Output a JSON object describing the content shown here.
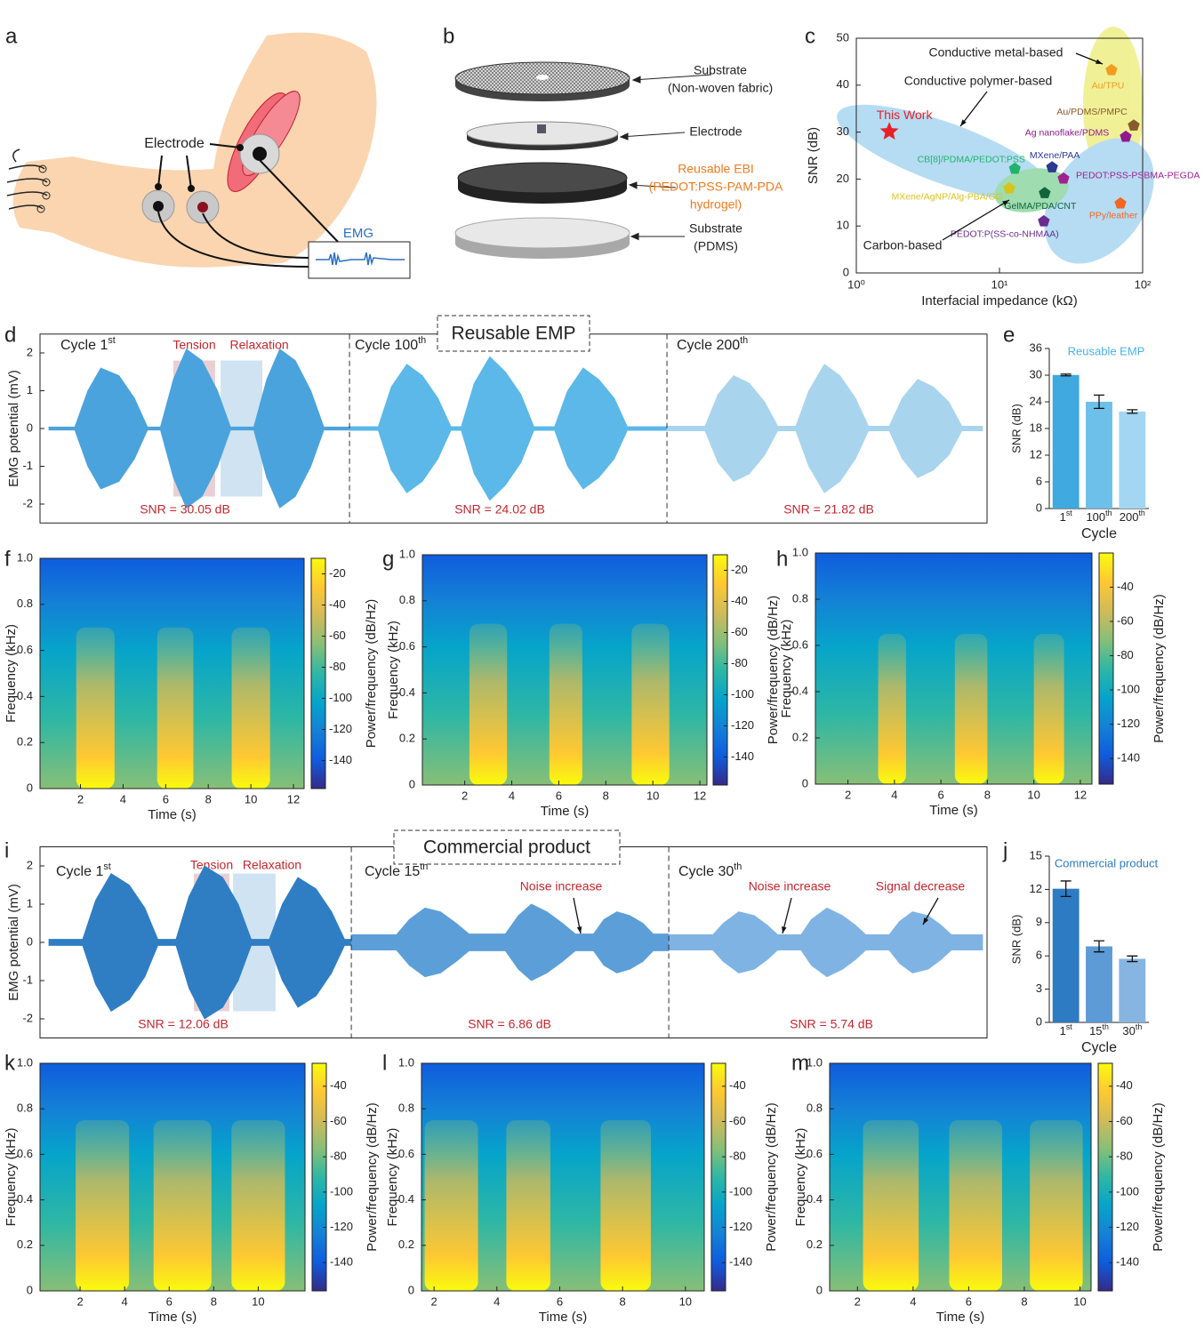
{
  "illustrations": {
    "a": {
      "label": "a",
      "electrode": "Electrode",
      "signal": "EMG"
    },
    "b": {
      "label": "b",
      "layers": [
        [
          "Substrate",
          "(Non-woven fabric)"
        ],
        [
          "Electrode"
        ],
        [
          "Reusable EBI",
          "(PEDOT:PSS-PAM-PDA",
          "hydrogel)"
        ],
        [
          "Substrate",
          "(PDMS)"
        ]
      ]
    }
  },
  "chart_data": [
    {
      "type": "scatter",
      "label": "c",
      "xlabel": "Interfacial impedance (kΩ)",
      "ylabel": "SNR (dB)",
      "xlog": true,
      "xlim": [
        1,
        100
      ],
      "xticks": [
        {
          "value": 1,
          "label": "10⁰"
        },
        {
          "value": 10,
          "label": "10¹"
        },
        {
          "value": 100,
          "label": "10²"
        }
      ],
      "ylim": [
        0,
        50
      ],
      "yticks": [
        0,
        10,
        20,
        30,
        40,
        50
      ],
      "series": [
        {
          "name": "This Work",
          "color": "#e8202a",
          "marker": "star",
          "x": [
            1.7
          ],
          "values": [
            30.1
          ]
        },
        {
          "name": "Au/TPU",
          "color": "#f39c1f",
          "marker": "pentagon",
          "x": [
            60.6
          ],
          "values": [
            43.2
          ]
        },
        {
          "name": "Au/PDMS/PMPC",
          "color": "#8b5a2b",
          "marker": "pentagon",
          "x": [
            86.7
          ],
          "values": [
            31.4
          ]
        },
        {
          "name": "Ag nanoflake/PDMS",
          "color": "#8e1a8e",
          "marker": "pentagon",
          "x": [
            76.2
          ],
          "values": [
            29
          ]
        },
        {
          "name": "CB[8]/PDMA/PEDOT:PSS",
          "color": "#21b36b",
          "marker": "pentagon",
          "x": [
            12.8
          ],
          "values": [
            22.2
          ]
        },
        {
          "name": "MXene/PAA",
          "color": "#2b3990",
          "marker": "pentagon",
          "x": [
            23.3
          ],
          "values": [
            22.5
          ]
        },
        {
          "name": "PEDOT:PSS-PSBMA-PEGDA",
          "color": "#a0208f",
          "marker": "pentagon",
          "x": [
            28
          ],
          "values": [
            20.1
          ]
        },
        {
          "name": "MXene/AgNP/Alg-PBA/GG",
          "color": "#d9c41a",
          "marker": "pentagon",
          "x": [
            11.7
          ],
          "values": [
            18
          ]
        },
        {
          "name": "GelMA/PDA/CNT",
          "color": "#12653a",
          "marker": "pentagon",
          "x": [
            20.7
          ],
          "values": [
            17
          ]
        },
        {
          "name": "PEDOT:P(SS-co-NHMAA)",
          "color": "#6a2c91",
          "marker": "pentagon",
          "x": [
            20.4
          ],
          "values": [
            11
          ]
        },
        {
          "name": "PPy/leather",
          "color": "#f26522",
          "marker": "pentagon",
          "x": [
            70
          ],
          "values": [
            14.8
          ]
        }
      ],
      "annotations": [
        "Conductive metal-based",
        "Conductive polymer-based",
        "Carbon-based"
      ]
    },
    {
      "type": "line",
      "label": "d",
      "title": "Reusable EMP",
      "ylabel": "EMG potential (mV)",
      "xlim": [
        0,
        36
      ],
      "ylim": [
        -2.5,
        2.5
      ],
      "yticks": [
        -2,
        -1,
        0,
        1,
        2
      ],
      "dividers": [
        11.59,
        23.83
      ],
      "spans": [
        {
          "label": "Tension",
          "x": [
            4.8,
            6.41
          ],
          "color": "#e9cfd3"
        },
        {
          "label": "Relaxation",
          "x": [
            6.62,
            8.23
          ],
          "color": "#cfe3f3"
        }
      ],
      "cycles": [
        {
          "text": "Cycle 1",
          "sup": "st"
        },
        {
          "text": "Cycle 100",
          "sup": "th"
        },
        {
          "text": "Cycle 200",
          "sup": "th"
        }
      ],
      "snr": [
        "SNR = 30.05 dB",
        "SNR = 24.02 dB",
        "SNR = 21.82 dB"
      ],
      "series": [
        {
          "color": "#4aa3dc",
          "x": [
            0,
            1.0,
            1.5,
            2.0,
            2.7,
            3.3,
            3.8,
            4.3,
            4.8,
            5.3,
            5.9,
            6.5,
            7.0,
            7.9,
            8.4,
            8.9,
            9.5,
            10.1,
            10.6,
            11.59
          ],
          "values": [
            0.04,
            0.04,
            1.0,
            1.6,
            1.4,
            0.8,
            0.04,
            0.04,
            1.3,
            2.1,
            1.8,
            1.0,
            0.04,
            0.04,
            1.3,
            2.1,
            1.8,
            1.0,
            0.04,
            0.04
          ]
        },
        {
          "color": "#5bb8e8",
          "x": [
            11.59,
            12.7,
            13.2,
            13.8,
            14.4,
            15.0,
            15.5,
            15.9,
            16.4,
            17.0,
            17.6,
            18.2,
            18.7,
            19.5,
            20.0,
            20.6,
            21.2,
            21.8,
            22.3,
            23.83
          ],
          "values": [
            0.05,
            0.05,
            1.1,
            1.7,
            1.4,
            0.8,
            0.05,
            0.05,
            1.2,
            1.9,
            1.5,
            0.9,
            0.05,
            0.05,
            1.0,
            1.6,
            1.3,
            0.8,
            0.05,
            0.05
          ]
        },
        {
          "color": "#a8d4ee",
          "x": [
            23.83,
            25.3,
            25.8,
            26.4,
            27.0,
            27.6,
            28.1,
            28.8,
            29.3,
            29.9,
            30.5,
            31.1,
            31.6,
            32.4,
            32.9,
            33.5,
            34.1,
            34.7,
            35.2,
            36
          ],
          "values": [
            0.06,
            0.06,
            0.9,
            1.4,
            1.2,
            0.7,
            0.06,
            0.06,
            1.0,
            1.7,
            1.4,
            0.8,
            0.06,
            0.06,
            0.8,
            1.3,
            1.1,
            0.7,
            0.06,
            0.06
          ]
        }
      ]
    },
    {
      "type": "bar",
      "label": "e",
      "title": "Reusable EMP",
      "title_color": "#4ab3e8",
      "xlabel": "Cycle",
      "ylabel": "SNR (dB)",
      "categories": [
        {
          "text": "1",
          "sup": "st"
        },
        {
          "text": "100",
          "sup": "th"
        },
        {
          "text": "200",
          "sup": "th"
        }
      ],
      "values": [
        30.05,
        24.02,
        21.82
      ],
      "errors": [
        0.2,
        1.5,
        0.4
      ],
      "colors": [
        "#3fa9e0",
        "#6cc0ea",
        "#a3d6f2"
      ],
      "ylim": [
        0,
        36
      ],
      "yticks": [
        0,
        6,
        12,
        18,
        24,
        30,
        36
      ]
    },
    {
      "type": "spectrogram",
      "label": "f",
      "xlabel": "Time (s)",
      "ylabel": "Frequency (kHz)",
      "clabel": "Power/frequency (dB/Hz)",
      "xlim": [
        0.1,
        12.5
      ],
      "xticks": [
        2,
        4,
        6,
        8,
        10,
        12
      ],
      "ylim": [
        0,
        1
      ],
      "yticks": [
        0,
        0.2,
        0.4,
        0.6,
        0.8,
        {
          "value": 1,
          "label": "1.0"
        }
      ],
      "clim": [
        -158,
        -10
      ],
      "cticks": [
        -140,
        -120,
        -100,
        -80,
        -60,
        -40,
        -20
      ],
      "bursts": [
        [
          1.8,
          3.6
        ],
        [
          5.6,
          7.3
        ],
        [
          9.1,
          10.9
        ]
      ],
      "burst_fmax": 0.7,
      "colormap": [
        "#352a87",
        "#0f5cdd",
        "#1481d6",
        "#06a4ca",
        "#2eb7a4",
        "#87bf77",
        "#d1bb59",
        "#fec832",
        "#f9fb0e"
      ]
    },
    {
      "type": "spectrogram",
      "label": "g",
      "xlabel": "Time (s)",
      "ylabel": "Frequency (kHz)",
      "clabel": "Power/frequency (dB/Hz)",
      "xlim": [
        0.2,
        12.3
      ],
      "xticks": [
        2,
        4,
        6,
        8,
        10,
        12
      ],
      "ylim": [
        0,
        1
      ],
      "yticks": [
        0,
        0.2,
        0.4,
        0.6,
        0.8,
        {
          "value": 1,
          "label": "1.0"
        }
      ],
      "clim": [
        -158,
        -10
      ],
      "cticks": [
        -140,
        -120,
        -100,
        -80,
        -60,
        -40,
        -20
      ],
      "bursts": [
        [
          2.2,
          3.8
        ],
        [
          5.6,
          7.0
        ],
        [
          9.1,
          10.7
        ]
      ],
      "burst_fmax": 0.7,
      "colormap": [
        "#352a87",
        "#0f5cdd",
        "#1481d6",
        "#06a4ca",
        "#2eb7a4",
        "#87bf77",
        "#d1bb59",
        "#fec832",
        "#f9fb0e"
      ]
    },
    {
      "type": "spectrogram",
      "label": "h",
      "xlabel": "Time (s)",
      "ylabel": "Frequency (kHz)",
      "clabel": "Power/frequency (dB/Hz)",
      "xlim": [
        0.6,
        12.5
      ],
      "xticks": [
        2,
        4,
        6,
        8,
        10,
        12
      ],
      "ylim": [
        0,
        1
      ],
      "yticks": [
        0,
        0.2,
        0.4,
        0.6,
        0.8,
        {
          "value": 1,
          "label": "1.0"
        }
      ],
      "clim": [
        -155,
        -20
      ],
      "cticks": [
        -140,
        -120,
        -100,
        -80,
        -60,
        -40
      ],
      "bursts": [
        [
          3.3,
          4.5
        ],
        [
          6.6,
          8.0
        ],
        [
          10.0,
          11.3
        ]
      ],
      "burst_fmax": 0.65,
      "colormap": [
        "#352a87",
        "#0f5cdd",
        "#1481d6",
        "#06a4ca",
        "#2eb7a4",
        "#87bf77",
        "#d1bb59",
        "#fec832",
        "#f9fb0e"
      ]
    },
    {
      "type": "line",
      "label": "i",
      "title": "Commercial product",
      "ylabel": "EMG potential (mV)",
      "xlim": [
        0,
        36
      ],
      "ylim": [
        -2.5,
        2.5
      ],
      "yticks": [
        -2,
        -1,
        0,
        1,
        2
      ],
      "dividers": [
        11.66,
        23.9
      ],
      "spans": [
        {
          "label": "Tension",
          "x": [
            5.59,
            6.96
          ],
          "color": "#e9cfd3"
        },
        {
          "label": "Relaxation",
          "x": [
            7.1,
            8.74
          ],
          "color": "#cfe3f3"
        }
      ],
      "cycles": [
        {
          "text": "Cycle 1",
          "sup": "st"
        },
        {
          "text": "Cycle 15",
          "sup": "th"
        },
        {
          "text": "Cycle 30",
          "sup": "th"
        }
      ],
      "snr": [
        "SNR = 12.06 dB",
        "SNR = 6.86 dB",
        "SNR = 5.74 dB"
      ],
      "annotations": [
        "Noise increase",
        "Noise increase",
        "Signal decrease"
      ],
      "series": [
        {
          "color": "#2f7ec4",
          "x": [
            0,
            1.3,
            1.8,
            2.4,
            3.1,
            3.7,
            4.2,
            4.9,
            5.4,
            6.0,
            6.7,
            7.3,
            7.8,
            8.5,
            9.0,
            9.6,
            10.3,
            10.9,
            11.4,
            11.66
          ],
          "values": [
            0.08,
            0.08,
            1.1,
            1.8,
            1.5,
            0.9,
            0.08,
            0.08,
            1.2,
            2.0,
            1.7,
            1.0,
            0.08,
            0.08,
            1.0,
            1.7,
            1.4,
            0.8,
            0.08,
            0.08
          ]
        },
        {
          "color": "#5c9ed8",
          "x": [
            11.66,
            13.4,
            13.9,
            14.5,
            15.1,
            15.7,
            16.2,
            17.6,
            18.1,
            18.6,
            19.2,
            19.8,
            20.3,
            21.0,
            21.4,
            21.9,
            22.4,
            22.9,
            23.3,
            23.9
          ],
          "values": [
            0.2,
            0.2,
            0.6,
            0.9,
            0.8,
            0.5,
            0.22,
            0.22,
            0.7,
            1.0,
            0.8,
            0.5,
            0.22,
            0.22,
            0.6,
            0.8,
            0.7,
            0.5,
            0.22,
            0.22
          ]
        },
        {
          "color": "#7fb3e3",
          "x": [
            23.9,
            25.6,
            26.0,
            26.6,
            27.2,
            27.7,
            28.1,
            29.0,
            29.4,
            30.0,
            30.6,
            31.1,
            31.5,
            32.4,
            32.8,
            33.3,
            33.9,
            34.4,
            34.8,
            36
          ],
          "values": [
            0.2,
            0.2,
            0.5,
            0.8,
            0.7,
            0.45,
            0.2,
            0.2,
            0.6,
            0.9,
            0.7,
            0.45,
            0.2,
            0.2,
            0.55,
            0.8,
            0.7,
            0.45,
            0.2,
            0.2
          ]
        }
      ]
    },
    {
      "type": "bar",
      "label": "j",
      "title": "Commercial product",
      "title_color": "#2d7bc2",
      "xlabel": "Cycle",
      "ylabel": "SNR (dB)",
      "categories": [
        {
          "text": "1",
          "sup": "st"
        },
        {
          "text": "15",
          "sup": "th"
        },
        {
          "text": "30",
          "sup": "th"
        }
      ],
      "values": [
        12.06,
        6.86,
        5.74
      ],
      "errors": [
        0.7,
        0.5,
        0.25
      ],
      "colors": [
        "#2d7bc2",
        "#5c9bd6",
        "#86b5e2"
      ],
      "ylim": [
        0,
        15
      ],
      "yticks": [
        0,
        3,
        6,
        9,
        12,
        15
      ]
    },
    {
      "type": "spectrogram",
      "label": "k",
      "xlabel": "Time (s)",
      "ylabel": "Frequency (kHz)",
      "clabel": "Power/frequency (dB/Hz)",
      "xlim": [
        0.2,
        12.1
      ],
      "xticks": [
        2,
        4,
        6,
        8,
        10
      ],
      "ylim": [
        0,
        1
      ],
      "yticks": [
        0,
        0.2,
        0.4,
        0.6,
        0.8,
        {
          "value": 1,
          "label": "1.0"
        }
      ],
      "clim": [
        -156,
        -27
      ],
      "cticks": [
        -140,
        -120,
        -100,
        -80,
        -60,
        -40
      ],
      "bursts": [
        [
          1.8,
          4.2
        ],
        [
          5.3,
          7.9
        ],
        [
          8.8,
          11.2
        ]
      ],
      "burst_fmax": 0.75,
      "colormap": [
        "#352a87",
        "#0f5cdd",
        "#1481d6",
        "#06a4ca",
        "#2eb7a4",
        "#87bf77",
        "#d1bb59",
        "#fec832",
        "#f9fb0e"
      ]
    },
    {
      "type": "spectrogram",
      "label": "l",
      "xlabel": "Time (s)",
      "ylabel": "Frequency (kHz)",
      "clabel": "Power/frequency (dB/Hz)",
      "xlim": [
        1.6,
        10.6
      ],
      "xticks": [
        2,
        4,
        6,
        8,
        10
      ],
      "ylim": [
        0,
        1
      ],
      "yticks": [
        0,
        0.2,
        0.4,
        0.6,
        0.8,
        {
          "value": 1,
          "label": "1.0"
        }
      ],
      "clim": [
        -156,
        -27
      ],
      "cticks": [
        -140,
        -120,
        -100,
        -80,
        -60,
        -40
      ],
      "bursts": [
        [
          1.7,
          3.4
        ],
        [
          4.3,
          5.7
        ],
        [
          7.3,
          8.9
        ]
      ],
      "burst_fmax": 0.75,
      "colormap": [
        "#352a87",
        "#0f5cdd",
        "#1481d6",
        "#06a4ca",
        "#2eb7a4",
        "#87bf77",
        "#d1bb59",
        "#fec832",
        "#f9fb0e"
      ]
    },
    {
      "type": "spectrogram",
      "label": "m",
      "xlabel": "Time (s)",
      "ylabel": "Frequency (kHz)",
      "clabel": "Power/frequency (dB/Hz)",
      "xlim": [
        1.0,
        10.4
      ],
      "xticks": [
        2,
        4,
        6,
        8,
        10
      ],
      "ylim": [
        0,
        1
      ],
      "yticks": [
        0,
        0.2,
        0.4,
        0.6,
        0.8,
        {
          "value": 1,
          "label": "1.0"
        }
      ],
      "clim": [
        -156,
        -27
      ],
      "cticks": [
        -140,
        -120,
        -100,
        -80,
        -60,
        -40
      ],
      "bursts": [
        [
          2.2,
          4.2
        ],
        [
          5.3,
          7.2
        ],
        [
          8.2,
          10.1
        ]
      ],
      "burst_fmax": 0.75,
      "colormap": [
        "#352a87",
        "#0f5cdd",
        "#1481d6",
        "#06a4ca",
        "#2eb7a4",
        "#87bf77",
        "#d1bb59",
        "#fec832",
        "#f9fb0e"
      ]
    }
  ]
}
